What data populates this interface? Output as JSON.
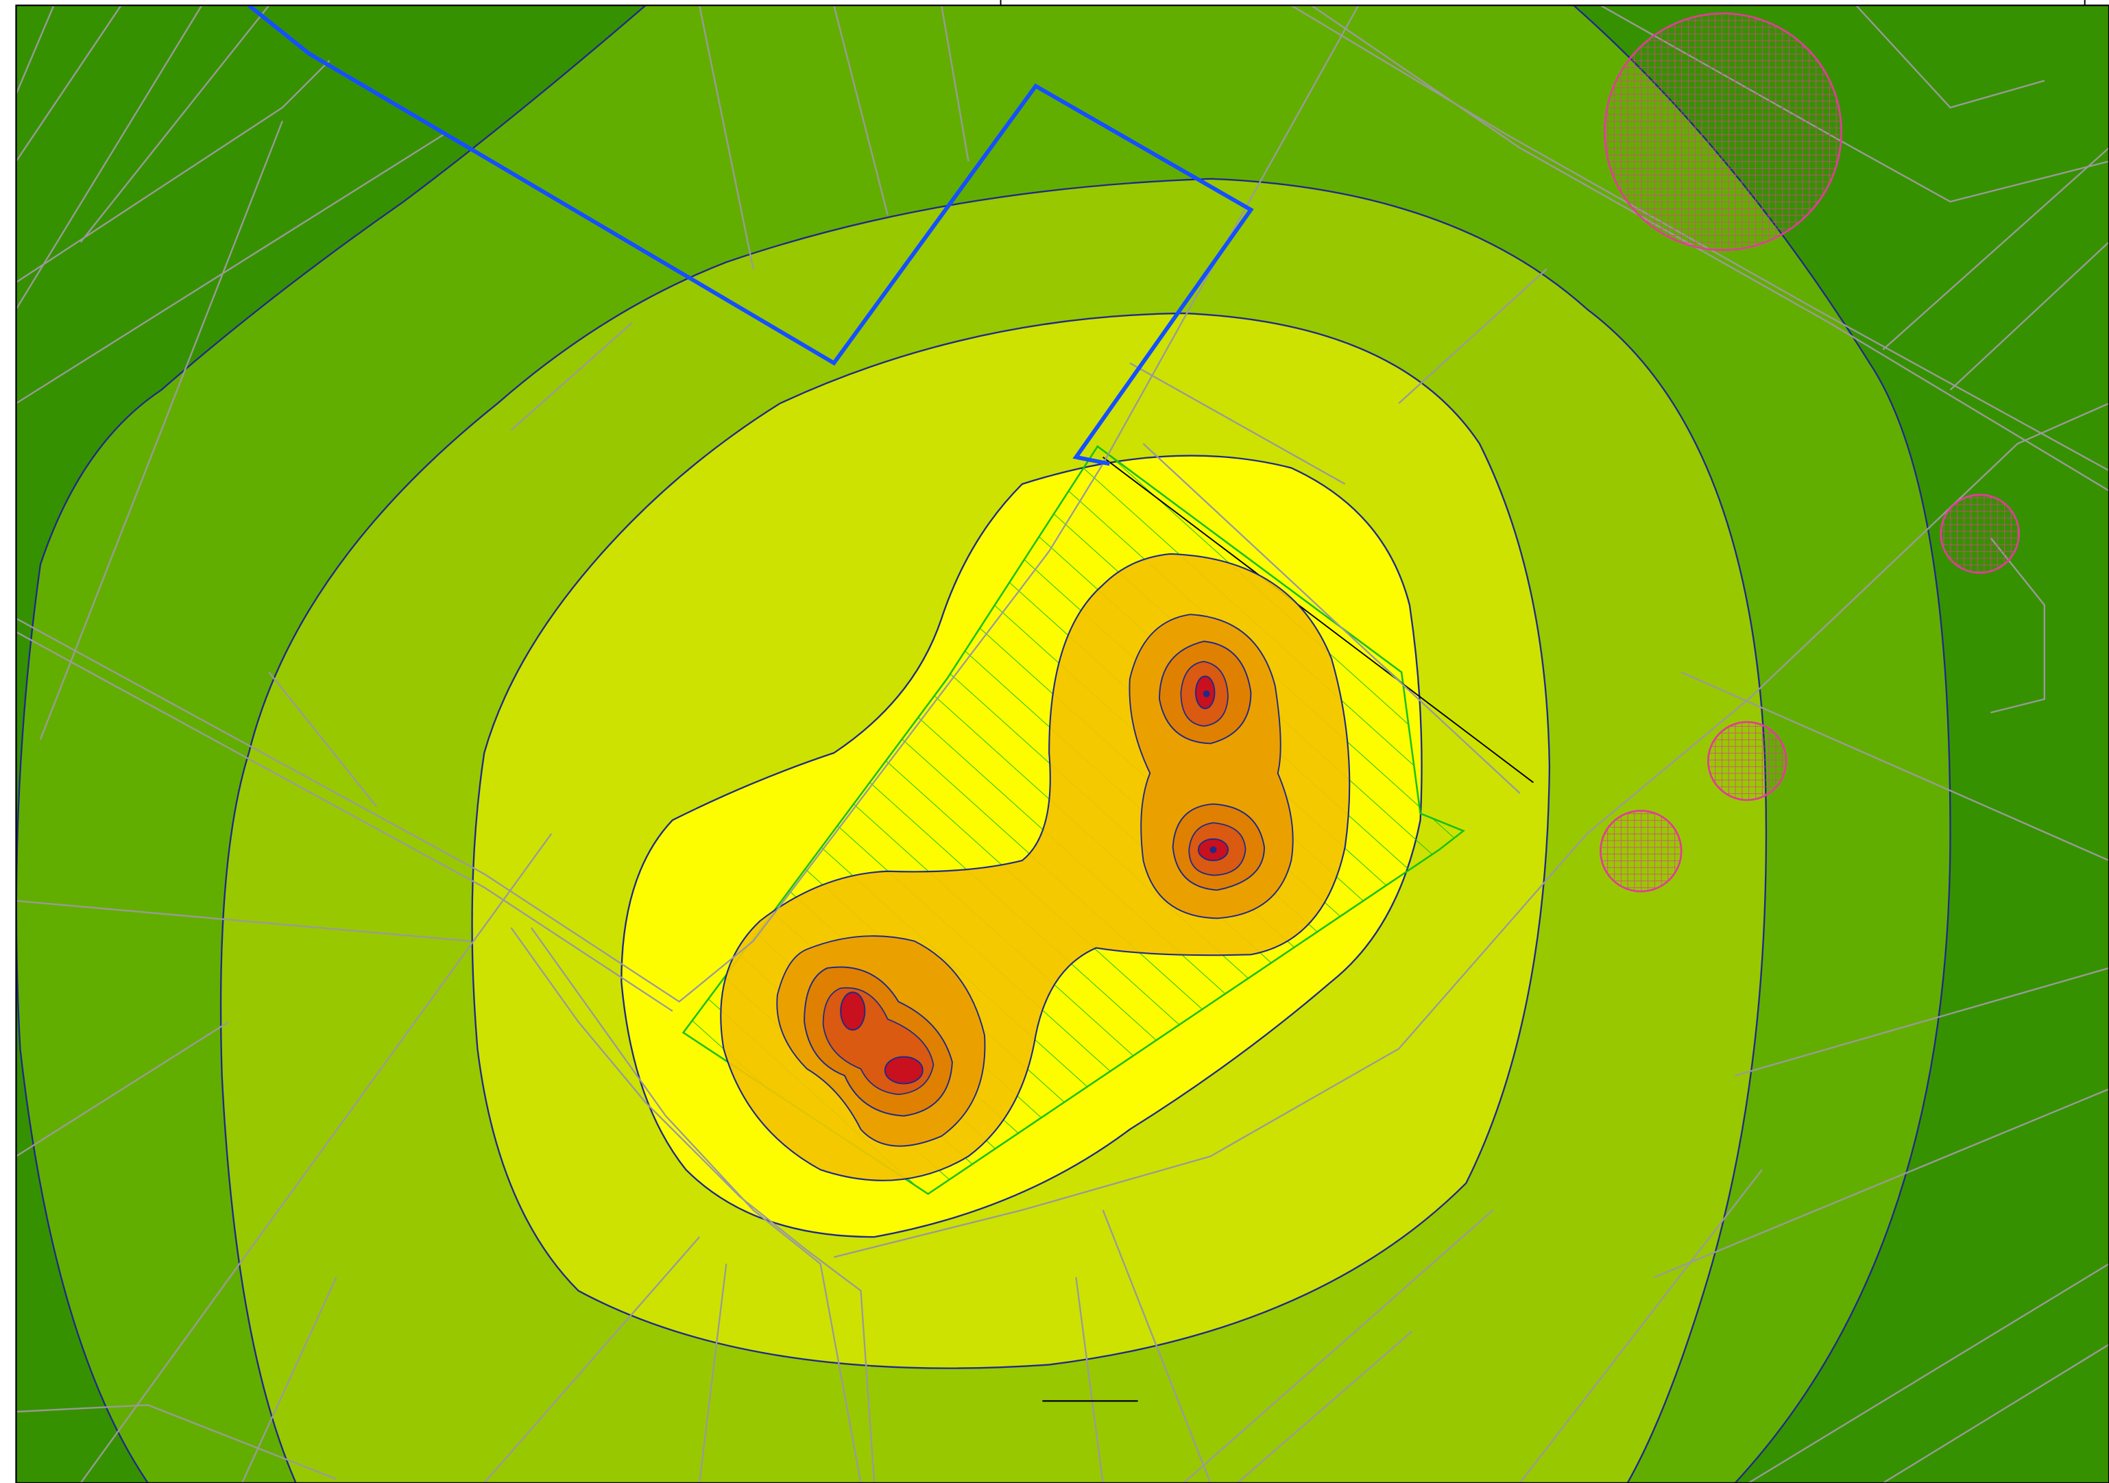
{
  "map": {
    "colors": {
      "zone_outer": "#369100",
      "zone_2": "#62ae00",
      "zone_3": "#98c800",
      "zone_4": "#cde200",
      "zone_5": "#fdfd00",
      "zone_6": "#f4c400",
      "zone_7": "#eaa100",
      "zone_8": "#e08000",
      "zone_9": "#d95a10",
      "zone_core": "#c8101e",
      "contour_line": "#1f2a8a",
      "parcel_line": "#9a9a9a",
      "boundary_line": "#1450ff",
      "site_outline": "#18c018",
      "protected_hatch": "#e23c9a",
      "frame_line": "#000000"
    },
    "icons": {
      "protected_area": "crosshatched-circle-icon",
      "site_area": "diagonal-hatch-icon"
    },
    "protected_areas_count": 4,
    "noise_sources_count": 4
  }
}
